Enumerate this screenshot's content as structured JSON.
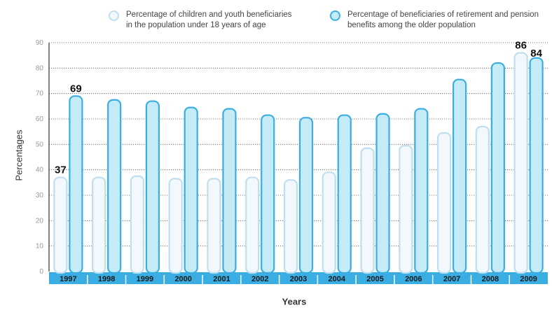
{
  "chart_data": {
    "type": "bar",
    "xlabel": "Years",
    "ylabel": "Percentages",
    "ylim": [
      0,
      90
    ],
    "yticks": [
      0,
      10,
      20,
      30,
      40,
      50,
      60,
      70,
      80,
      90
    ],
    "grid": true,
    "legend_position": "top",
    "categories": [
      "1997",
      "1998",
      "1999",
      "2000",
      "2001",
      "2002",
      "2003",
      "2004",
      "2005",
      "2006",
      "2007",
      "2008",
      "2009"
    ],
    "series": [
      {
        "name": "Percentage of children and youth beneficiaries\nin the population under 18 years of age",
        "values": [
          37,
          37,
          37.5,
          36.5,
          36.5,
          37,
          36,
          39,
          48.5,
          49.5,
          54.5,
          57,
          86
        ],
        "fill": "#f2f8fc",
        "stroke": "#bfdfee"
      },
      {
        "name": "Percentage of beneficiaries of retirement and pension\nbenefits among the older population",
        "values": [
          69,
          67.5,
          67,
          64.5,
          64,
          61.5,
          60.5,
          61.5,
          62,
          64,
          75.5,
          82,
          84
        ],
        "fill": "#c4ebf6",
        "stroke": "#3aaee3"
      }
    ],
    "data_labels": [
      {
        "series": 0,
        "index": 0,
        "text": "37"
      },
      {
        "series": 1,
        "index": 0,
        "text": "69"
      },
      {
        "series": 0,
        "index": 12,
        "text": "86"
      },
      {
        "series": 1,
        "index": 12,
        "text": "84"
      }
    ],
    "colors": {
      "axis_band": "#3aaee3",
      "year_label": "#1a1a1a",
      "grid": "#555555",
      "tick_label": "#999999"
    }
  }
}
